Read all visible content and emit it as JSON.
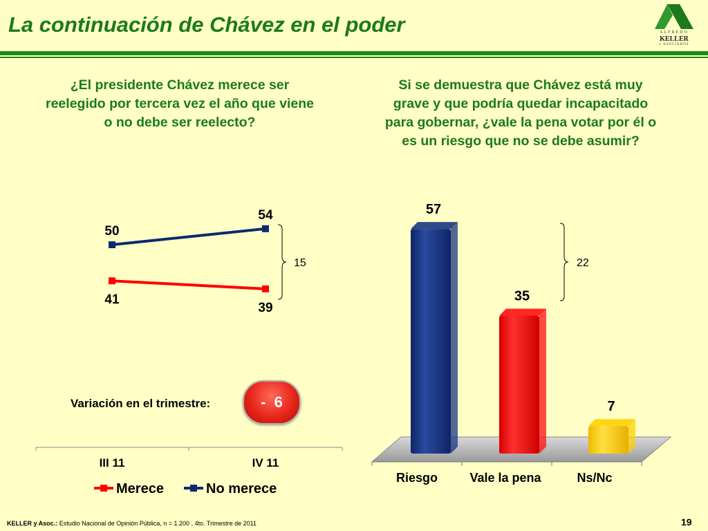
{
  "header": {
    "title": "La continuación de Chávez en el poder",
    "logo": {
      "line1": "ALFREDO",
      "line2": "KELLER",
      "line3": "y ASOCIADOS"
    }
  },
  "left_panel": {
    "question": "¿El presidente Chávez merece ser reelegido por tercera vez el año que viene o no debe ser reelecto?",
    "variation_label": "Variación en el trimestre:",
    "variation_value": "-  6"
  },
  "right_panel": {
    "question": "Si se demuestra que Chávez está muy grave y que podría quedar incapacitado para gobernar, ¿vale la pena votar por él o es un riesgo que no se debe asumir?"
  },
  "chart_data": [
    {
      "type": "line",
      "categories": [
        "III 11",
        "IV 11"
      ],
      "series": [
        {
          "name": "Merece",
          "values": [
            41,
            39
          ],
          "color": "#ff0000"
        },
        {
          "name": "No merece",
          "values": [
            50,
            54
          ],
          "color": "#0d2a6e"
        }
      ],
      "annotation": "15",
      "legend_position": "bottom"
    },
    {
      "type": "bar",
      "categories": [
        "Riesgo",
        "Vale la pena",
        "Ns/Nc"
      ],
      "values": [
        57,
        35,
        7
      ],
      "colors": [
        "#1a3580",
        "#ff1010",
        "#ffd200"
      ],
      "annotation": "22"
    }
  ],
  "footer": {
    "source_bold": "KELLER y Asoc.:",
    "source": " Estudio Nacional de Opinión Pública, n = 1.200 , 4to. Trimestre de 2011",
    "page": "19"
  }
}
